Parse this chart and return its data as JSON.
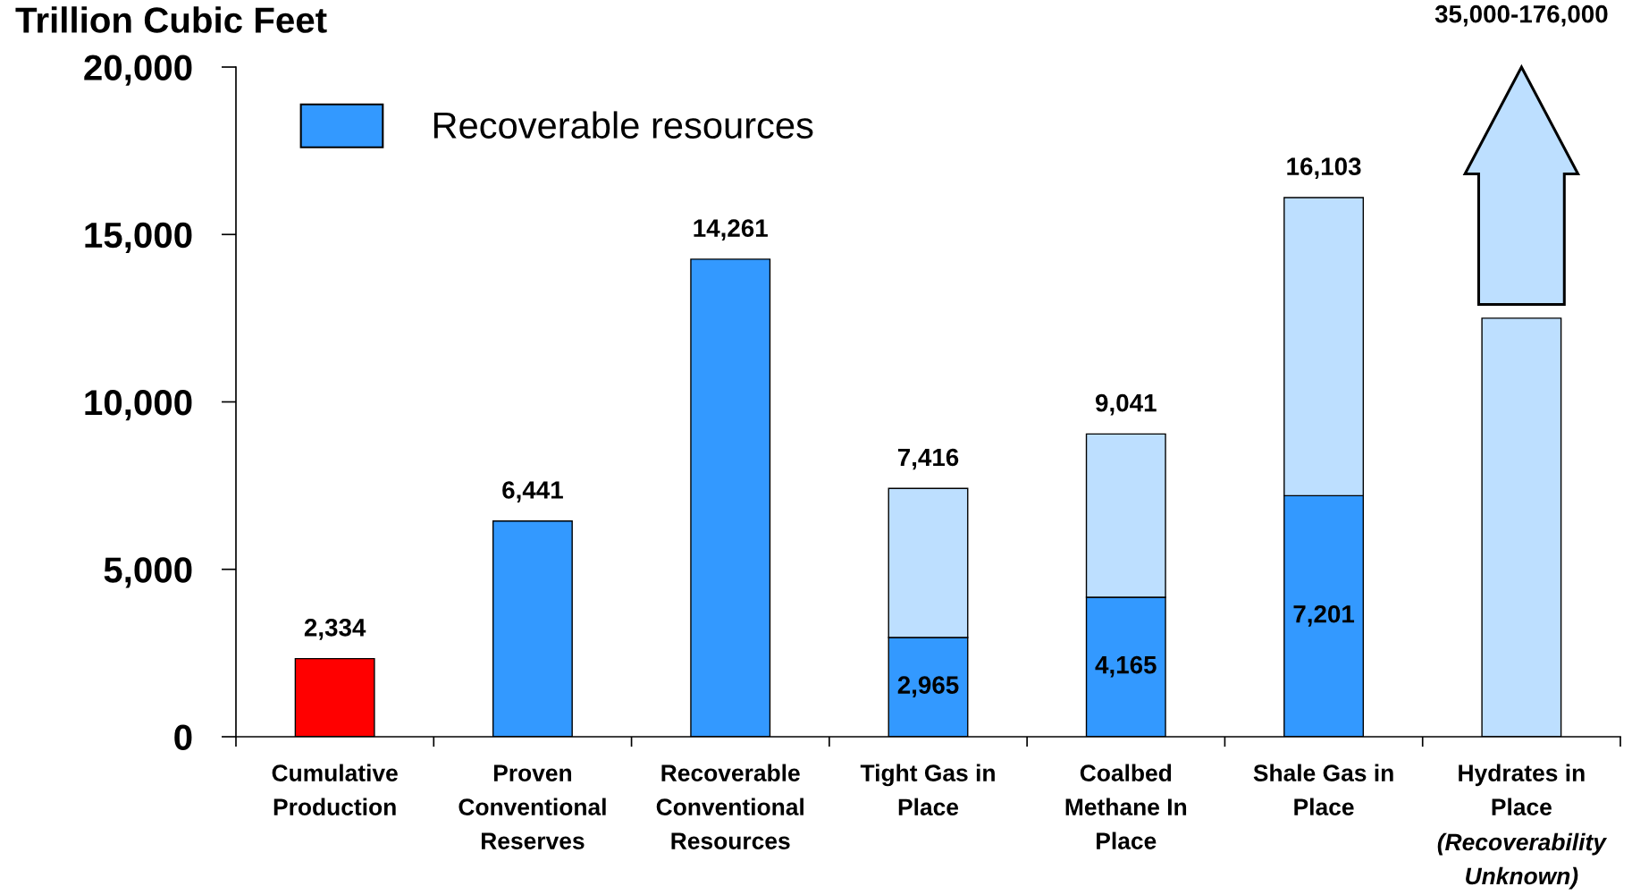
{
  "chart_data": {
    "type": "bar",
    "stacked": true,
    "ylabel": "Trillion Cubic Feet",
    "categories": [
      "Cumulative Production",
      "Proven Conventional Reserves",
      "Recoverable Conventional Resources",
      "Tight Gas in Place",
      "Coalbed Methane In Place",
      "Shale Gas in Place",
      "Hydrates in Place"
    ],
    "series": [
      {
        "color": "#ff0000",
        "values": [
          2334,
          null,
          null,
          null,
          null,
          null,
          null
        ]
      },
      {
        "name": "Recoverable resources",
        "color": "#3399ff",
        "values": [
          null,
          6441,
          14261,
          2965,
          4165,
          7201,
          null
        ],
        "value_labels": [
          null,
          null,
          null,
          "2,965",
          "4,165",
          "7,201",
          null
        ]
      },
      {
        "color": "#bddfff",
        "values": [
          null,
          null,
          null,
          4451,
          4876,
          8902,
          12500
        ]
      }
    ],
    "totals": [
      "2,334",
      "6,441",
      "14,261",
      "7,416",
      "9,041",
      "16,103",
      null
    ],
    "annotations": [
      "35,000-176,000",
      "(Recoverability Unknown)"
    ],
    "ylim": [
      0,
      20000
    ],
    "yticks": [
      0,
      {
        "value": 5000,
        "label": "5,000"
      },
      {
        "value": 10000,
        "label": "10,000"
      },
      {
        "value": 15000,
        "label": "15,000"
      },
      {
        "value": 20000,
        "label": "20,000"
      }
    ],
    "legend": "top left",
    "grid": false
  }
}
